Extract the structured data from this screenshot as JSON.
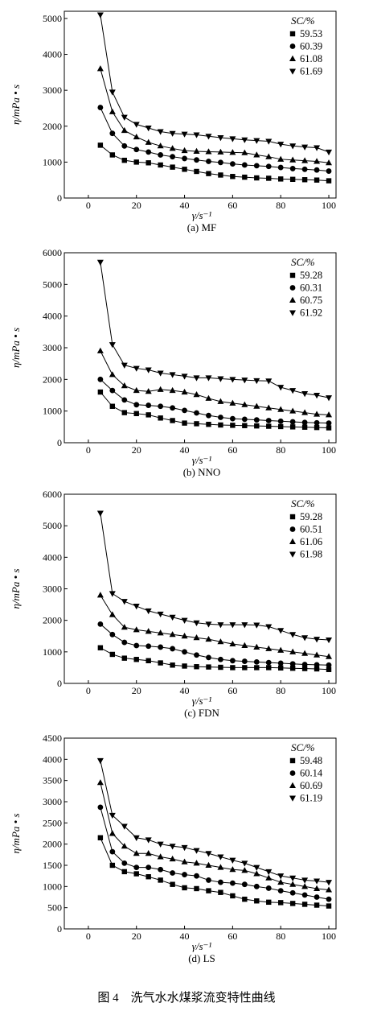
{
  "figure_caption": "图 4　洗气水水煤浆流变特性曲线",
  "chart_data": [
    {
      "type": "line",
      "subtitle": "(a) MF",
      "xlabel": "γ/s⁻¹",
      "ylabel": "η/mPa • s",
      "xlim": [
        -10,
        103
      ],
      "ylim": [
        0,
        5200
      ],
      "xticks": [
        0,
        20,
        40,
        60,
        80,
        100
      ],
      "yticks": [
        0,
        1000,
        2000,
        3000,
        4000,
        5000
      ],
      "legend_title": "SC/%",
      "legend_position": "top-right",
      "x": [
        5,
        10,
        15,
        20,
        25,
        30,
        35,
        40,
        45,
        50,
        55,
        60,
        65,
        70,
        75,
        80,
        85,
        90,
        95,
        100
      ],
      "series": [
        {
          "name": "59.53",
          "marker": "square",
          "values": [
            1470,
            1200,
            1050,
            1000,
            980,
            920,
            860,
            800,
            740,
            680,
            640,
            600,
            580,
            560,
            550,
            530,
            520,
            510,
            500,
            480
          ]
        },
        {
          "name": "60.39",
          "marker": "circle",
          "values": [
            2520,
            1800,
            1450,
            1350,
            1280,
            1200,
            1150,
            1100,
            1060,
            1020,
            990,
            950,
            920,
            900,
            880,
            850,
            820,
            800,
            780,
            750
          ]
        },
        {
          "name": "61.08",
          "marker": "triangle-up",
          "values": [
            3600,
            2400,
            1880,
            1700,
            1550,
            1450,
            1380,
            1320,
            1300,
            1290,
            1280,
            1270,
            1260,
            1200,
            1150,
            1080,
            1060,
            1040,
            1020,
            980
          ]
        },
        {
          "name": "61.69",
          "marker": "triangle-down",
          "values": [
            5100,
            2950,
            2250,
            2050,
            1950,
            1850,
            1800,
            1780,
            1760,
            1720,
            1680,
            1650,
            1620,
            1600,
            1580,
            1500,
            1450,
            1420,
            1400,
            1280
          ]
        }
      ]
    },
    {
      "type": "line",
      "subtitle": "(b) NNO",
      "xlabel": "γ/s⁻¹",
      "ylabel": "η/mPa • s",
      "xlim": [
        -10,
        103
      ],
      "ylim": [
        0,
        6000
      ],
      "xticks": [
        0,
        20,
        40,
        60,
        80,
        100
      ],
      "yticks": [
        0,
        1000,
        2000,
        3000,
        4000,
        5000,
        6000
      ],
      "legend_title": "SC/%",
      "legend_position": "top-right",
      "x": [
        5,
        10,
        15,
        20,
        25,
        30,
        35,
        40,
        45,
        50,
        55,
        60,
        65,
        70,
        75,
        80,
        85,
        90,
        95,
        100
      ],
      "series": [
        {
          "name": "59.28",
          "marker": "square",
          "values": [
            1600,
            1150,
            950,
            920,
            880,
            780,
            700,
            620,
            600,
            580,
            560,
            550,
            540,
            530,
            520,
            510,
            500,
            490,
            480,
            470
          ]
        },
        {
          "name": "60.31",
          "marker": "circle",
          "values": [
            2000,
            1650,
            1350,
            1200,
            1180,
            1150,
            1100,
            1020,
            940,
            860,
            800,
            760,
            740,
            720,
            700,
            680,
            660,
            640,
            630,
            620
          ]
        },
        {
          "name": "60.75",
          "marker": "triangle-up",
          "values": [
            2900,
            2150,
            1800,
            1650,
            1620,
            1680,
            1650,
            1600,
            1520,
            1400,
            1300,
            1250,
            1200,
            1150,
            1100,
            1050,
            1000,
            950,
            900,
            880
          ]
        },
        {
          "name": "61.92",
          "marker": "triangle-down",
          "values": [
            5700,
            3100,
            2450,
            2350,
            2300,
            2200,
            2150,
            2100,
            2050,
            2050,
            2020,
            2000,
            1980,
            1960,
            1950,
            1750,
            1650,
            1550,
            1500,
            1420
          ]
        }
      ]
    },
    {
      "type": "line",
      "subtitle": "(c) FDN",
      "xlabel": "γ/s⁻¹",
      "ylabel": "η/mPa • s",
      "xlim": [
        -10,
        103
      ],
      "ylim": [
        0,
        6000
      ],
      "xticks": [
        0,
        20,
        40,
        60,
        80,
        100
      ],
      "yticks": [
        0,
        1000,
        2000,
        3000,
        4000,
        5000,
        6000
      ],
      "legend_title": "SC/%",
      "legend_position": "top-right",
      "x": [
        5,
        10,
        15,
        20,
        25,
        30,
        35,
        40,
        45,
        50,
        55,
        60,
        65,
        70,
        75,
        80,
        85,
        90,
        95,
        100
      ],
      "series": [
        {
          "name": "59.28",
          "marker": "square",
          "values": [
            1130,
            920,
            800,
            760,
            720,
            650,
            580,
            550,
            530,
            520,
            510,
            500,
            500,
            500,
            500,
            490,
            480,
            470,
            460,
            440
          ]
        },
        {
          "name": "60.51",
          "marker": "circle",
          "values": [
            1880,
            1550,
            1300,
            1200,
            1180,
            1150,
            1100,
            1000,
            900,
            820,
            760,
            720,
            700,
            680,
            660,
            640,
            620,
            600,
            590,
            580
          ]
        },
        {
          "name": "61.06",
          "marker": "triangle-up",
          "values": [
            2800,
            2180,
            1780,
            1700,
            1650,
            1600,
            1550,
            1500,
            1450,
            1400,
            1320,
            1250,
            1200,
            1150,
            1100,
            1050,
            1000,
            950,
            900,
            850
          ]
        },
        {
          "name": "61.98",
          "marker": "triangle-down",
          "values": [
            5400,
            2850,
            2600,
            2450,
            2300,
            2200,
            2100,
            2000,
            1920,
            1880,
            1860,
            1860,
            1860,
            1850,
            1800,
            1680,
            1550,
            1450,
            1400,
            1380
          ]
        }
      ]
    },
    {
      "type": "line",
      "subtitle": "(d) LS",
      "xlabel": "γ/s⁻¹",
      "ylabel": "η/mPa • s",
      "xlim": [
        -10,
        103
      ],
      "ylim": [
        0,
        4500
      ],
      "xticks": [
        0,
        20,
        40,
        60,
        80,
        100
      ],
      "yticks": [
        0,
        500,
        1000,
        1500,
        2000,
        2500,
        3000,
        3500,
        4000,
        4500
      ],
      "legend_title": "SC/%",
      "legend_position": "top-right",
      "x": [
        5,
        10,
        15,
        20,
        25,
        30,
        35,
        40,
        45,
        50,
        55,
        60,
        65,
        70,
        75,
        80,
        85,
        90,
        95,
        100
      ],
      "series": [
        {
          "name": "59.48",
          "marker": "square",
          "values": [
            2150,
            1500,
            1350,
            1300,
            1230,
            1150,
            1050,
            970,
            950,
            900,
            860,
            780,
            700,
            660,
            630,
            620,
            600,
            580,
            560,
            540
          ]
        },
        {
          "name": "60.14",
          "marker": "circle",
          "values": [
            2870,
            1820,
            1550,
            1450,
            1450,
            1400,
            1320,
            1280,
            1250,
            1150,
            1100,
            1080,
            1050,
            1000,
            960,
            900,
            850,
            800,
            750,
            700
          ]
        },
        {
          "name": "60.69",
          "marker": "triangle-up",
          "values": [
            3450,
            2250,
            1950,
            1780,
            1780,
            1700,
            1650,
            1580,
            1550,
            1500,
            1450,
            1400,
            1380,
            1300,
            1200,
            1100,
            1050,
            1000,
            950,
            920
          ]
        },
        {
          "name": "61.19",
          "marker": "triangle-down",
          "values": [
            3970,
            2680,
            2420,
            2150,
            2100,
            2000,
            1950,
            1920,
            1850,
            1780,
            1700,
            1620,
            1550,
            1450,
            1350,
            1250,
            1200,
            1150,
            1130,
            1100
          ]
        }
      ]
    }
  ]
}
